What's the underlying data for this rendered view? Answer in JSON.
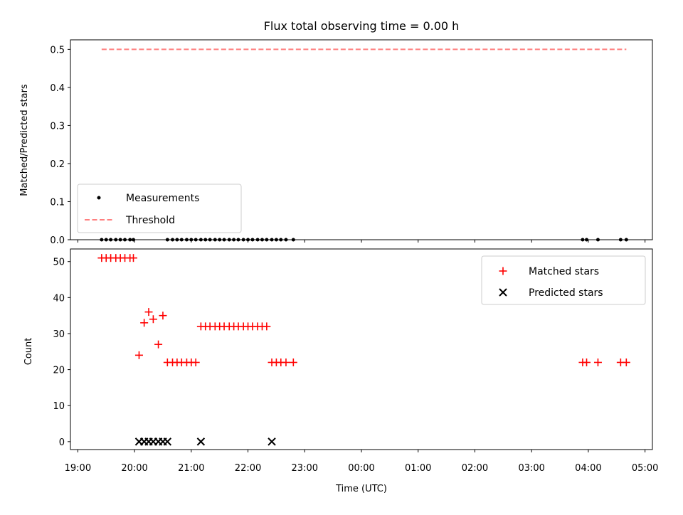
{
  "chart_data": [
    {
      "type": "scatter",
      "title": "Flux total observing time = 0.00 h",
      "xlabel": "",
      "ylabel": "Matched/Predicted stars",
      "xlim": [
        18.87,
        29.13
      ],
      "ylim": [
        0,
        0.525
      ],
      "yticks": [
        0.0,
        0.1,
        0.2,
        0.3,
        0.4,
        0.5
      ],
      "ytick_labels": [
        "0.0",
        "0.1",
        "0.2",
        "0.3",
        "0.4",
        "0.5"
      ],
      "legend_position": "lower-left",
      "series": [
        {
          "name": "Measurements",
          "marker": "dot",
          "color": "#000000",
          "x": [
            19.42,
            19.5,
            19.58,
            19.67,
            19.75,
            19.83,
            19.92,
            19.98,
            20.58,
            20.67,
            20.75,
            20.83,
            20.92,
            21.0,
            21.08,
            21.17,
            21.25,
            21.33,
            21.42,
            21.5,
            21.58,
            21.67,
            21.75,
            21.83,
            21.92,
            22.0,
            22.08,
            22.17,
            22.25,
            22.33,
            22.42,
            22.5,
            22.58,
            22.67,
            22.8,
            27.9,
            27.97,
            28.17,
            28.57,
            28.67
          ],
          "y": [
            0,
            0,
            0,
            0,
            0,
            0,
            0,
            0,
            0,
            0,
            0,
            0,
            0,
            0,
            0,
            0,
            0,
            0,
            0,
            0,
            0,
            0,
            0,
            0,
            0,
            0,
            0,
            0,
            0,
            0,
            0,
            0,
            0,
            0,
            0,
            0,
            0,
            0,
            0,
            0
          ]
        },
        {
          "name": "Threshold",
          "marker": "dashed-line",
          "color": "#ff7f7f",
          "x": [
            19.42,
            28.67
          ],
          "y": [
            0.5,
            0.5
          ]
        }
      ]
    },
    {
      "type": "scatter",
      "title": "",
      "xlabel": "Time (UTC)",
      "ylabel": "Count",
      "xlim": [
        18.87,
        29.13
      ],
      "ylim": [
        -2.2,
        53.5
      ],
      "xticks": [
        19,
        20,
        21,
        22,
        23,
        24,
        25,
        26,
        27,
        28,
        29
      ],
      "xtick_labels": [
        "19:00",
        "20:00",
        "21:00",
        "22:00",
        "23:00",
        "00:00",
        "01:00",
        "02:00",
        "03:00",
        "04:00",
        "05:00"
      ],
      "yticks": [
        0,
        10,
        20,
        30,
        40,
        50
      ],
      "ytick_labels": [
        "0",
        "10",
        "20",
        "30",
        "40",
        "50"
      ],
      "legend_position": "upper-right",
      "series": [
        {
          "name": "Matched stars",
          "marker": "plus",
          "color": "#ff0000",
          "x": [
            19.42,
            19.5,
            19.58,
            19.67,
            19.75,
            19.83,
            19.92,
            19.98,
            20.08,
            20.17,
            20.25,
            20.33,
            20.42,
            20.5,
            20.58,
            20.67,
            20.75,
            20.83,
            20.92,
            21.0,
            21.08,
            21.17,
            21.25,
            21.33,
            21.42,
            21.5,
            21.58,
            21.67,
            21.75,
            21.83,
            21.92,
            22.0,
            22.08,
            22.17,
            22.25,
            22.33,
            22.42,
            22.5,
            22.58,
            22.67,
            22.8,
            27.9,
            27.97,
            28.17,
            28.57,
            28.67
          ],
          "y": [
            51,
            51,
            51,
            51,
            51,
            51,
            51,
            51,
            24,
            33,
            36,
            34,
            27,
            35,
            22,
            22,
            22,
            22,
            22,
            22,
            22,
            32,
            32,
            32,
            32,
            32,
            32,
            32,
            32,
            32,
            32,
            32,
            32,
            32,
            32,
            32,
            22,
            22,
            22,
            22,
            22,
            22,
            22,
            22,
            22,
            22
          ]
        },
        {
          "name": "Predicted stars",
          "marker": "x",
          "color": "#000000",
          "x": [
            20.08,
            20.17,
            20.25,
            20.33,
            20.42,
            20.5,
            20.58,
            21.17,
            22.42
          ],
          "y": [
            0,
            0,
            0,
            0,
            0,
            0,
            0,
            0,
            0
          ]
        }
      ]
    }
  ]
}
